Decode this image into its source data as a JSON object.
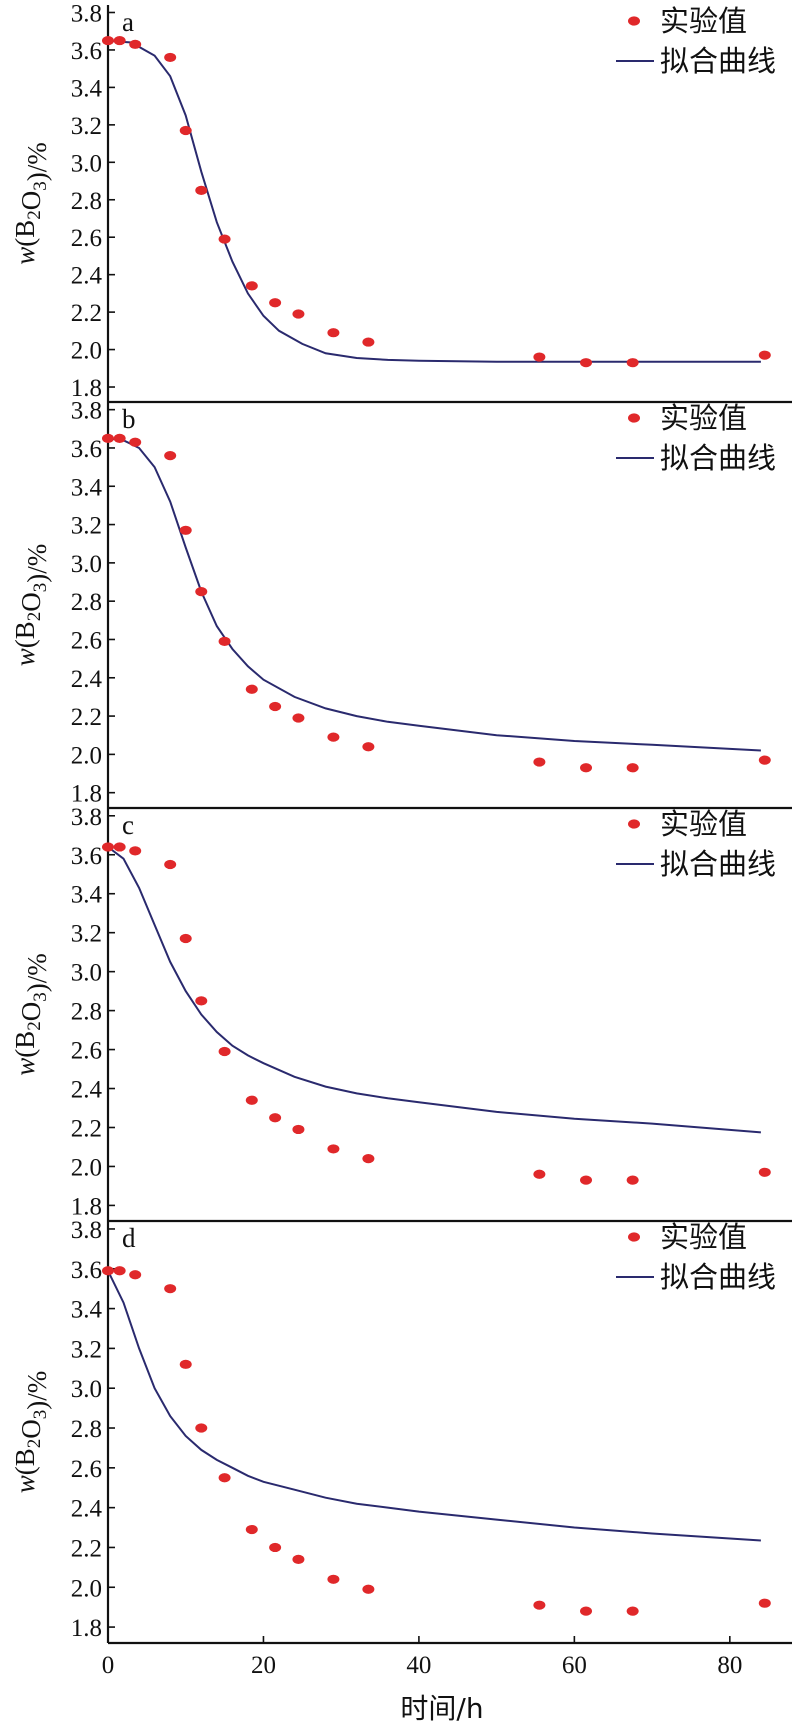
{
  "colors": {
    "points": "#e0282a",
    "curve": "#2a2a6e",
    "axis": "#111111"
  },
  "chart_data": [
    {
      "type": "scatter",
      "panel_label": "a",
      "xlabel": "时间/h",
      "ylabel": "w(B2O3)/%",
      "xlim": [
        0,
        88
      ],
      "ylim": [
        1.72,
        3.84
      ],
      "x_ticks": [
        "0",
        "20",
        "40",
        "60",
        "80"
      ],
      "y_ticks": [
        "1.8",
        "2.0",
        "2.2",
        "2.4",
        "2.6",
        "2.8",
        "3.0",
        "3.2",
        "3.4",
        "3.6",
        "3.8"
      ],
      "legend": {
        "position": "top-right",
        "points_label": "实验值",
        "curve_label": "拟合曲线"
      },
      "series": [
        {
          "name": "实验值",
          "kind": "points",
          "x": [
            0,
            1.5,
            3.5,
            8,
            10,
            12,
            15,
            18.5,
            21.5,
            24.5,
            29,
            33.5,
            55.5,
            61.5,
            67.5,
            84.5
          ],
          "y": [
            3.65,
            3.65,
            3.63,
            3.56,
            3.17,
            2.85,
            2.59,
            2.34,
            2.25,
            2.19,
            2.09,
            2.04,
            1.96,
            1.93,
            1.93,
            1.97
          ]
        },
        {
          "name": "拟合曲线",
          "kind": "line",
          "x": [
            0,
            3,
            6,
            8,
            10,
            12,
            14,
            16,
            18,
            20,
            22,
            25,
            28,
            32,
            36,
            40,
            50,
            60,
            70,
            84
          ],
          "y": [
            3.65,
            3.64,
            3.57,
            3.46,
            3.25,
            2.95,
            2.68,
            2.47,
            2.3,
            2.18,
            2.1,
            2.03,
            1.98,
            1.955,
            1.945,
            1.94,
            1.935,
            1.935,
            1.935,
            1.935
          ]
        }
      ]
    },
    {
      "type": "scatter",
      "panel_label": "b",
      "xlabel": "时间/h",
      "ylabel": "w(B2O3)/%",
      "xlim": [
        0,
        88
      ],
      "ylim": [
        1.72,
        3.84
      ],
      "x_ticks": [
        "0",
        "20",
        "40",
        "60",
        "80"
      ],
      "y_ticks": [
        "1.8",
        "2.0",
        "2.2",
        "2.4",
        "2.6",
        "2.8",
        "3.0",
        "3.2",
        "3.4",
        "3.6",
        "3.8"
      ],
      "legend": {
        "position": "top-right",
        "points_label": "实验值",
        "curve_label": "拟合曲线"
      },
      "series": [
        {
          "name": "实验值",
          "kind": "points",
          "x": [
            0,
            1.5,
            3.5,
            8,
            10,
            12,
            15,
            18.5,
            21.5,
            24.5,
            29,
            33.5,
            55.5,
            61.5,
            67.5,
            84.5
          ],
          "y": [
            3.65,
            3.65,
            3.63,
            3.56,
            3.17,
            2.85,
            2.59,
            2.34,
            2.25,
            2.19,
            2.09,
            2.04,
            1.96,
            1.93,
            1.93,
            1.97
          ]
        },
        {
          "name": "拟合曲线",
          "kind": "line",
          "x": [
            0,
            2,
            4,
            6,
            8,
            10,
            12,
            14,
            16,
            18,
            20,
            24,
            28,
            32,
            36,
            40,
            50,
            60,
            70,
            84
          ],
          "y": [
            3.65,
            3.64,
            3.6,
            3.5,
            3.32,
            3.08,
            2.85,
            2.67,
            2.55,
            2.46,
            2.39,
            2.3,
            2.24,
            2.2,
            2.17,
            2.15,
            2.1,
            2.07,
            2.05,
            2.02
          ]
        }
      ]
    },
    {
      "type": "scatter",
      "panel_label": "c",
      "xlabel": "时间/h",
      "ylabel": "w(B2O3)/%",
      "xlim": [
        0,
        88
      ],
      "ylim": [
        1.72,
        3.84
      ],
      "x_ticks": [
        "0",
        "20",
        "40",
        "60",
        "80"
      ],
      "y_ticks": [
        "1.8",
        "2.0",
        "2.2",
        "2.4",
        "2.6",
        "2.8",
        "3.0",
        "3.2",
        "3.4",
        "3.6",
        "3.8"
      ],
      "legend": {
        "position": "top-right",
        "points_label": "实验值",
        "curve_label": "拟合曲线"
      },
      "series": [
        {
          "name": "实验值",
          "kind": "points",
          "x": [
            0,
            1.5,
            3.5,
            8,
            10,
            12,
            15,
            18.5,
            21.5,
            24.5,
            29,
            33.5,
            55.5,
            61.5,
            67.5,
            84.5
          ],
          "y": [
            3.64,
            3.64,
            3.62,
            3.55,
            3.17,
            2.85,
            2.59,
            2.34,
            2.25,
            2.19,
            2.09,
            2.04,
            1.96,
            1.93,
            1.93,
            1.97
          ]
        },
        {
          "name": "拟合曲线",
          "kind": "line",
          "x": [
            0,
            2,
            4,
            6,
            8,
            10,
            12,
            14,
            16,
            18,
            20,
            24,
            28,
            32,
            36,
            40,
            50,
            60,
            70,
            84
          ],
          "y": [
            3.64,
            3.58,
            3.43,
            3.24,
            3.05,
            2.9,
            2.78,
            2.69,
            2.62,
            2.57,
            2.53,
            2.46,
            2.41,
            2.375,
            2.35,
            2.33,
            2.28,
            2.245,
            2.22,
            2.175
          ]
        }
      ]
    },
    {
      "type": "scatter",
      "panel_label": "d",
      "xlabel": "时间/h",
      "ylabel": "w(B2O3)/%",
      "xlim": [
        0,
        88
      ],
      "ylim": [
        1.72,
        3.84
      ],
      "x_ticks": [
        "0",
        "20",
        "40",
        "60",
        "80"
      ],
      "y_ticks": [
        "1.8",
        "2.0",
        "2.2",
        "2.4",
        "2.6",
        "2.8",
        "3.0",
        "3.2",
        "3.4",
        "3.6",
        "3.8"
      ],
      "legend": {
        "position": "top-right",
        "points_label": "实验值",
        "curve_label": "拟合曲线"
      },
      "series": [
        {
          "name": "实验值",
          "kind": "points",
          "x": [
            0,
            1.5,
            3.5,
            8,
            10,
            12,
            15,
            18.5,
            21.5,
            24.5,
            29,
            33.5,
            55.5,
            61.5,
            67.5,
            84.5
          ],
          "y": [
            3.59,
            3.59,
            3.57,
            3.5,
            3.12,
            2.8,
            2.55,
            2.29,
            2.2,
            2.14,
            2.04,
            1.99,
            1.91,
            1.88,
            1.88,
            1.92
          ]
        },
        {
          "name": "拟合曲线",
          "kind": "line",
          "x": [
            0,
            2,
            4,
            6,
            8,
            10,
            12,
            14,
            16,
            18,
            20,
            24,
            28,
            32,
            36,
            40,
            50,
            60,
            70,
            84
          ],
          "y": [
            3.59,
            3.43,
            3.2,
            3.0,
            2.86,
            2.76,
            2.69,
            2.64,
            2.6,
            2.56,
            2.53,
            2.49,
            2.45,
            2.42,
            2.4,
            2.38,
            2.34,
            2.3,
            2.27,
            2.235
          ]
        }
      ]
    }
  ]
}
